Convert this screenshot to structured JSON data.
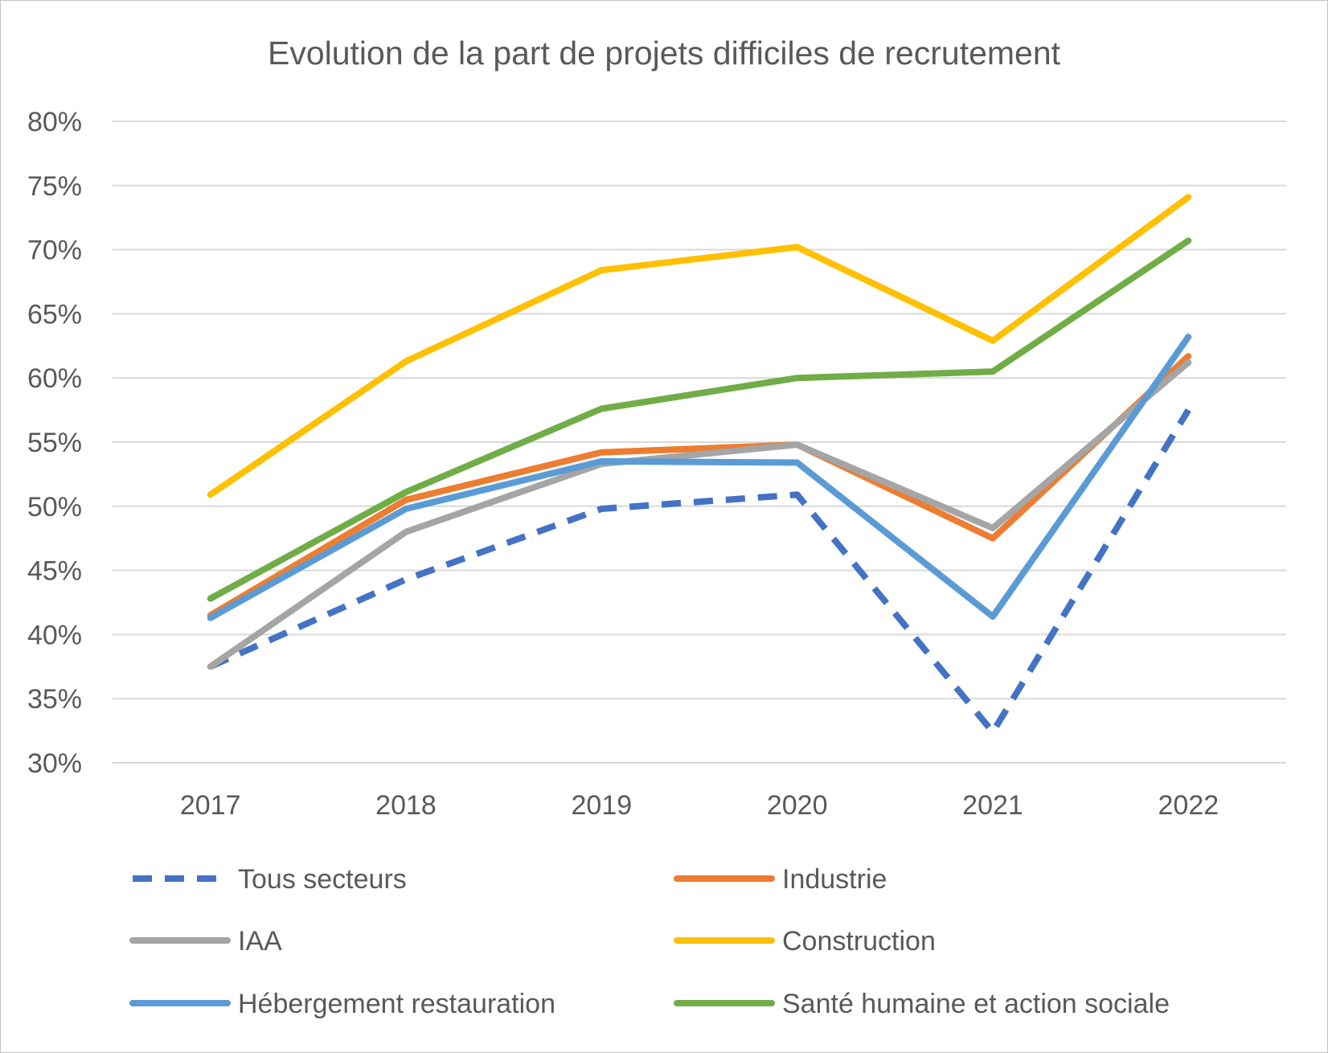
{
  "chart_data": {
    "type": "line",
    "title": "Evolution de la part de projets difficiles de recrutement",
    "xlabel": "",
    "ylabel": "",
    "categories": [
      "2017",
      "2018",
      "2019",
      "2020",
      "2021",
      "2022"
    ],
    "ylim": [
      0.3,
      0.8
    ],
    "yticks": [
      0.3,
      0.35,
      0.4,
      0.45,
      0.5,
      0.55,
      0.6,
      0.65,
      0.7,
      0.75,
      0.8
    ],
    "ytick_labels": [
      "30%",
      "35%",
      "40%",
      "45%",
      "50%",
      "55%",
      "60%",
      "65%",
      "70%",
      "75%",
      "80%"
    ],
    "grid": true,
    "legend_position": "bottom",
    "series": [
      {
        "name": "Tous secteurs",
        "color": "#4472c4",
        "dashed": true,
        "values": [
          0.375,
          0.443,
          0.498,
          0.509,
          0.324,
          0.575
        ]
      },
      {
        "name": "Industrie",
        "color": "#ed7d31",
        "dashed": false,
        "values": [
          0.415,
          0.505,
          0.542,
          0.548,
          0.475,
          0.617
        ]
      },
      {
        "name": "IAA",
        "color": "#a5a5a5",
        "dashed": false,
        "values": [
          0.375,
          0.48,
          0.533,
          0.548,
          0.483,
          0.612
        ]
      },
      {
        "name": "Construction",
        "color": "#ffc000",
        "dashed": false,
        "values": [
          0.509,
          0.613,
          0.684,
          0.702,
          0.629,
          0.741
        ]
      },
      {
        "name": "Hébergement restauration",
        "color": "#5b9bd5",
        "dashed": false,
        "values": [
          0.413,
          0.498,
          0.535,
          0.534,
          0.414,
          0.632
        ]
      },
      {
        "name": "Santé humaine et action sociale",
        "color": "#70ad47",
        "dashed": false,
        "values": [
          0.428,
          0.511,
          0.576,
          0.6,
          0.605,
          0.707
        ]
      }
    ]
  }
}
